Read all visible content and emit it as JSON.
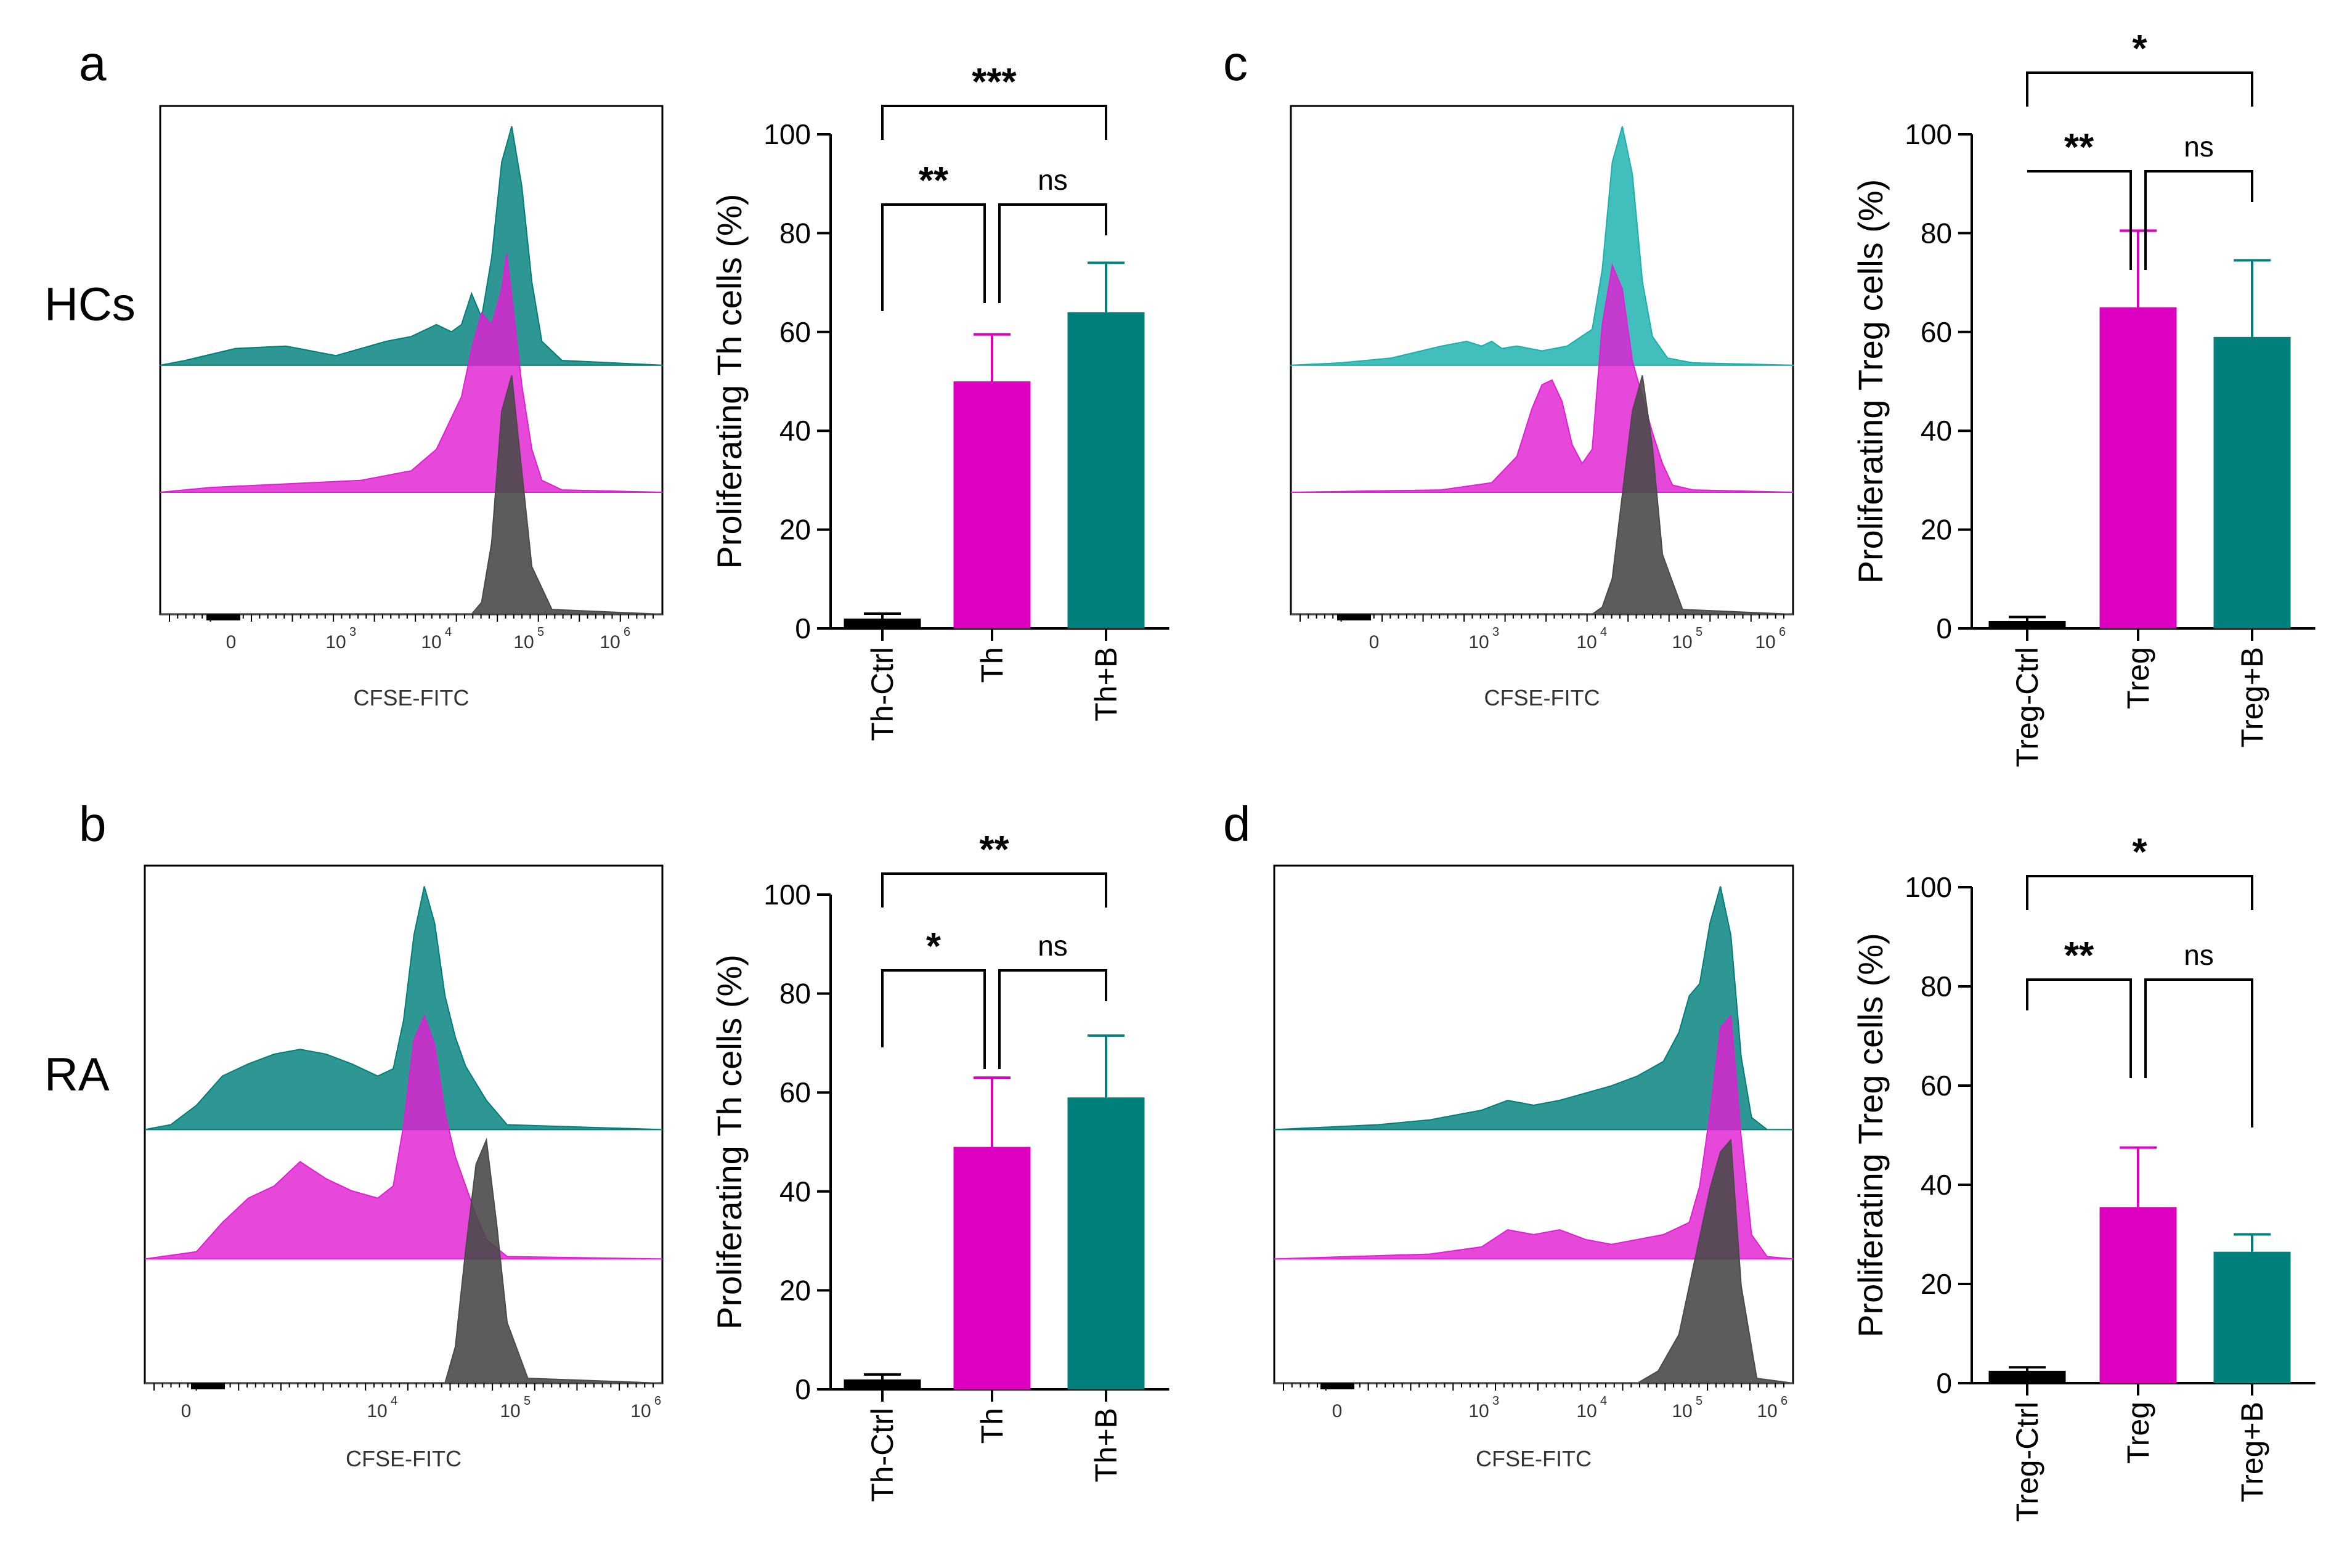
{
  "colors": {
    "teal": "#007f7b",
    "teal_light": "#19b0ae",
    "magenta": "#e020d2",
    "magenta_bar": "#dd00c0",
    "grey": "#4a4a4a",
    "ctrl_bar": "#000000"
  },
  "chart_data": [
    {
      "panel": "a",
      "row_label": "HCs",
      "type": "area",
      "xlabel": "CFSE-FITC",
      "ticks": [
        {
          "base": "0",
          "exp": ""
        },
        {
          "base": "10",
          "exp": "3"
        },
        {
          "base": "10",
          "exp": "4"
        },
        {
          "base": "10",
          "exp": "5"
        },
        {
          "base": "10",
          "exp": "6"
        }
      ],
      "series": [
        {
          "name": "Th+B",
          "color": "#007f7b",
          "x": [
            0.0,
            0.05,
            0.15,
            0.25,
            0.35,
            0.45,
            0.5,
            0.55,
            0.58,
            0.6,
            0.62,
            0.64,
            0.66,
            0.68,
            0.7,
            0.72,
            0.74,
            0.76,
            0.8,
            1.0
          ],
          "y": [
            0.0,
            0.02,
            0.07,
            0.08,
            0.04,
            0.1,
            0.12,
            0.17,
            0.14,
            0.17,
            0.3,
            0.2,
            0.45,
            0.85,
            1.0,
            0.75,
            0.35,
            0.1,
            0.02,
            0.0
          ]
        },
        {
          "name": "Th",
          "color": "#e020d2",
          "x": [
            0.0,
            0.1,
            0.2,
            0.3,
            0.4,
            0.5,
            0.55,
            0.6,
            0.62,
            0.64,
            0.66,
            0.68,
            0.69,
            0.7,
            0.72,
            0.74,
            0.76,
            0.8,
            1.0
          ],
          "y": [
            0.0,
            0.02,
            0.03,
            0.04,
            0.05,
            0.09,
            0.18,
            0.4,
            0.6,
            0.75,
            0.7,
            0.85,
            1.0,
            0.82,
            0.45,
            0.18,
            0.05,
            0.01,
            0.0
          ]
        },
        {
          "name": "Th-Ctrl",
          "color": "#4a4a4a",
          "x": [
            0.0,
            0.62,
            0.64,
            0.66,
            0.68,
            0.7,
            0.72,
            0.74,
            0.78,
            1.0
          ],
          "y": [
            0.0,
            0.0,
            0.05,
            0.3,
            0.85,
            1.0,
            0.6,
            0.2,
            0.02,
            0.0
          ]
        }
      ]
    },
    {
      "panel": "b",
      "row_label": "RA",
      "type": "area",
      "xlabel": "CFSE-FITC",
      "ticks": [
        {
          "base": "0",
          "exp": ""
        },
        {
          "base": "10",
          "exp": "4"
        },
        {
          "base": "10",
          "exp": "5"
        },
        {
          "base": "10",
          "exp": "6"
        }
      ],
      "series": [
        {
          "name": "Th+B",
          "color": "#007f7b",
          "x": [
            0.0,
            0.05,
            0.1,
            0.15,
            0.2,
            0.25,
            0.3,
            0.35,
            0.4,
            0.45,
            0.48,
            0.5,
            0.52,
            0.54,
            0.56,
            0.58,
            0.6,
            0.62,
            0.66,
            0.7,
            1.0
          ],
          "y": [
            0.0,
            0.02,
            0.1,
            0.22,
            0.27,
            0.31,
            0.33,
            0.31,
            0.27,
            0.22,
            0.25,
            0.45,
            0.8,
            1.0,
            0.85,
            0.55,
            0.38,
            0.26,
            0.12,
            0.02,
            0.0
          ]
        },
        {
          "name": "Th",
          "color": "#e020d2",
          "x": [
            0.0,
            0.1,
            0.15,
            0.2,
            0.25,
            0.3,
            0.35,
            0.4,
            0.45,
            0.48,
            0.5,
            0.52,
            0.54,
            0.56,
            0.58,
            0.6,
            0.62,
            0.64,
            0.66,
            0.7,
            1.0
          ],
          "y": [
            0.0,
            0.03,
            0.15,
            0.25,
            0.3,
            0.4,
            0.33,
            0.28,
            0.25,
            0.3,
            0.55,
            0.9,
            1.0,
            0.88,
            0.6,
            0.42,
            0.3,
            0.18,
            0.08,
            0.01,
            0.0
          ]
        },
        {
          "name": "Th-Ctrl",
          "color": "#4a4a4a",
          "x": [
            0.0,
            0.58,
            0.6,
            0.62,
            0.64,
            0.66,
            0.68,
            0.7,
            0.74,
            1.0
          ],
          "y": [
            0.0,
            0.0,
            0.15,
            0.55,
            0.9,
            1.0,
            0.65,
            0.25,
            0.02,
            0.0
          ]
        }
      ]
    },
    {
      "panel": "c",
      "type": "area",
      "xlabel": "CFSE-FITC",
      "ticks": [
        {
          "base": "0",
          "exp": ""
        },
        {
          "base": "10",
          "exp": "3"
        },
        {
          "base": "10",
          "exp": "4"
        },
        {
          "base": "10",
          "exp": "5"
        },
        {
          "base": "10",
          "exp": "6"
        }
      ],
      "series": [
        {
          "name": "Treg+B",
          "color": "#19b0ae",
          "x": [
            0.0,
            0.1,
            0.2,
            0.3,
            0.35,
            0.38,
            0.4,
            0.42,
            0.45,
            0.5,
            0.55,
            0.6,
            0.62,
            0.64,
            0.66,
            0.68,
            0.7,
            0.72,
            0.75,
            0.8,
            1.0
          ],
          "y": [
            0.0,
            0.01,
            0.03,
            0.08,
            0.1,
            0.08,
            0.1,
            0.07,
            0.08,
            0.06,
            0.08,
            0.15,
            0.4,
            0.85,
            1.0,
            0.8,
            0.35,
            0.12,
            0.03,
            0.01,
            0.0
          ]
        },
        {
          "name": "Treg",
          "color": "#e020d2",
          "x": [
            0.0,
            0.3,
            0.4,
            0.45,
            0.48,
            0.5,
            0.52,
            0.54,
            0.56,
            0.58,
            0.6,
            0.62,
            0.64,
            0.66,
            0.68,
            0.7,
            0.72,
            0.74,
            0.76,
            0.8,
            1.0
          ],
          "y": [
            0.0,
            0.01,
            0.04,
            0.15,
            0.35,
            0.45,
            0.47,
            0.38,
            0.2,
            0.12,
            0.18,
            0.7,
            0.95,
            0.85,
            0.55,
            0.4,
            0.25,
            0.12,
            0.03,
            0.01,
            0.0
          ]
        },
        {
          "name": "Treg-Ctrl",
          "color": "#4a4a4a",
          "x": [
            0.0,
            0.6,
            0.62,
            0.64,
            0.66,
            0.68,
            0.7,
            0.72,
            0.74,
            0.78,
            1.0
          ],
          "y": [
            0.0,
            0.0,
            0.03,
            0.15,
            0.5,
            0.85,
            1.0,
            0.7,
            0.25,
            0.02,
            0.0
          ]
        }
      ]
    },
    {
      "panel": "d",
      "type": "area",
      "xlabel": "CFSE-FITC",
      "ticks": [
        {
          "base": "0",
          "exp": ""
        },
        {
          "base": "10",
          "exp": "3"
        },
        {
          "base": "10",
          "exp": "4"
        },
        {
          "base": "10",
          "exp": "5"
        },
        {
          "base": "10",
          "exp": "6"
        }
      ],
      "series": [
        {
          "name": "Treg+B",
          "color": "#007f7b",
          "x": [
            0.0,
            0.2,
            0.3,
            0.4,
            0.45,
            0.5,
            0.55,
            0.6,
            0.65,
            0.7,
            0.75,
            0.78,
            0.8,
            0.82,
            0.84,
            0.86,
            0.88,
            0.9,
            0.92,
            0.95,
            1.0
          ],
          "y": [
            0.0,
            0.02,
            0.04,
            0.08,
            0.12,
            0.1,
            0.12,
            0.15,
            0.18,
            0.22,
            0.28,
            0.4,
            0.55,
            0.6,
            0.85,
            1.0,
            0.8,
            0.3,
            0.05,
            0.0,
            0.0
          ]
        },
        {
          "name": "Treg",
          "color": "#e020d2",
          "x": [
            0.0,
            0.3,
            0.4,
            0.45,
            0.5,
            0.55,
            0.6,
            0.65,
            0.7,
            0.75,
            0.8,
            0.82,
            0.84,
            0.86,
            0.88,
            0.9,
            0.92,
            0.95,
            1.0
          ],
          "y": [
            0.0,
            0.02,
            0.05,
            0.12,
            0.1,
            0.12,
            0.08,
            0.06,
            0.08,
            0.1,
            0.15,
            0.3,
            0.6,
            0.95,
            1.0,
            0.5,
            0.1,
            0.01,
            0.0
          ]
        },
        {
          "name": "Treg-Ctrl",
          "color": "#4a4a4a",
          "x": [
            0.0,
            0.7,
            0.74,
            0.78,
            0.8,
            0.82,
            0.84,
            0.86,
            0.88,
            0.9,
            0.93,
            1.0
          ],
          "y": [
            0.0,
            0.0,
            0.05,
            0.2,
            0.4,
            0.6,
            0.8,
            0.95,
            1.0,
            0.4,
            0.02,
            0.0
          ]
        }
      ]
    },
    {
      "panel": "a-bar",
      "type": "bar",
      "ylabel": "Proliferating Th cells (%)",
      "ylim": [
        0,
        100
      ],
      "yticks": [
        "0",
        "20",
        "40",
        "60",
        "80",
        "100"
      ],
      "categories": [
        "Th-Ctrl",
        "Th",
        "Th+B"
      ],
      "values": [
        2,
        50,
        64
      ],
      "errors": [
        1,
        9.5,
        10
      ],
      "significance": {
        "outer": "***",
        "left": "**",
        "right": "ns"
      }
    },
    {
      "panel": "b-bar",
      "type": "bar",
      "ylabel": "Proliferating Th cells (%)",
      "ylim": [
        0,
        100
      ],
      "yticks": [
        "0",
        "20",
        "40",
        "60",
        "80",
        "100"
      ],
      "categories": [
        "Th-Ctrl",
        "Th",
        "Th+B"
      ],
      "values": [
        2,
        49,
        59
      ],
      "errors": [
        1,
        14,
        12.5
      ],
      "significance": {
        "outer": "**",
        "left": "*",
        "right": "ns"
      }
    },
    {
      "panel": "c-bar",
      "type": "bar",
      "ylabel": "Proliferating Treg cells (%)",
      "ylim": [
        0,
        100
      ],
      "yticks": [
        "0",
        "20",
        "40",
        "60",
        "80",
        "100"
      ],
      "categories": [
        "Treg-Ctrl",
        "Treg",
        "Treg+B"
      ],
      "values": [
        1.5,
        65,
        59
      ],
      "errors": [
        0.8,
        15.5,
        15.5
      ],
      "significance": {
        "outer": "*",
        "left": "**",
        "right": "ns"
      }
    },
    {
      "panel": "d-bar",
      "type": "bar",
      "ylabel": "Proliferating Treg cells (%)",
      "ylim": [
        0,
        100
      ],
      "yticks": [
        "0",
        "20",
        "40",
        "60",
        "80",
        "100"
      ],
      "categories": [
        "Treg-Ctrl",
        "Treg",
        "Treg+B"
      ],
      "values": [
        2.5,
        35.5,
        26.5
      ],
      "errors": [
        0.7,
        12,
        3.5
      ],
      "significance": {
        "outer": "*",
        "left": "**",
        "right": "ns"
      }
    }
  ]
}
